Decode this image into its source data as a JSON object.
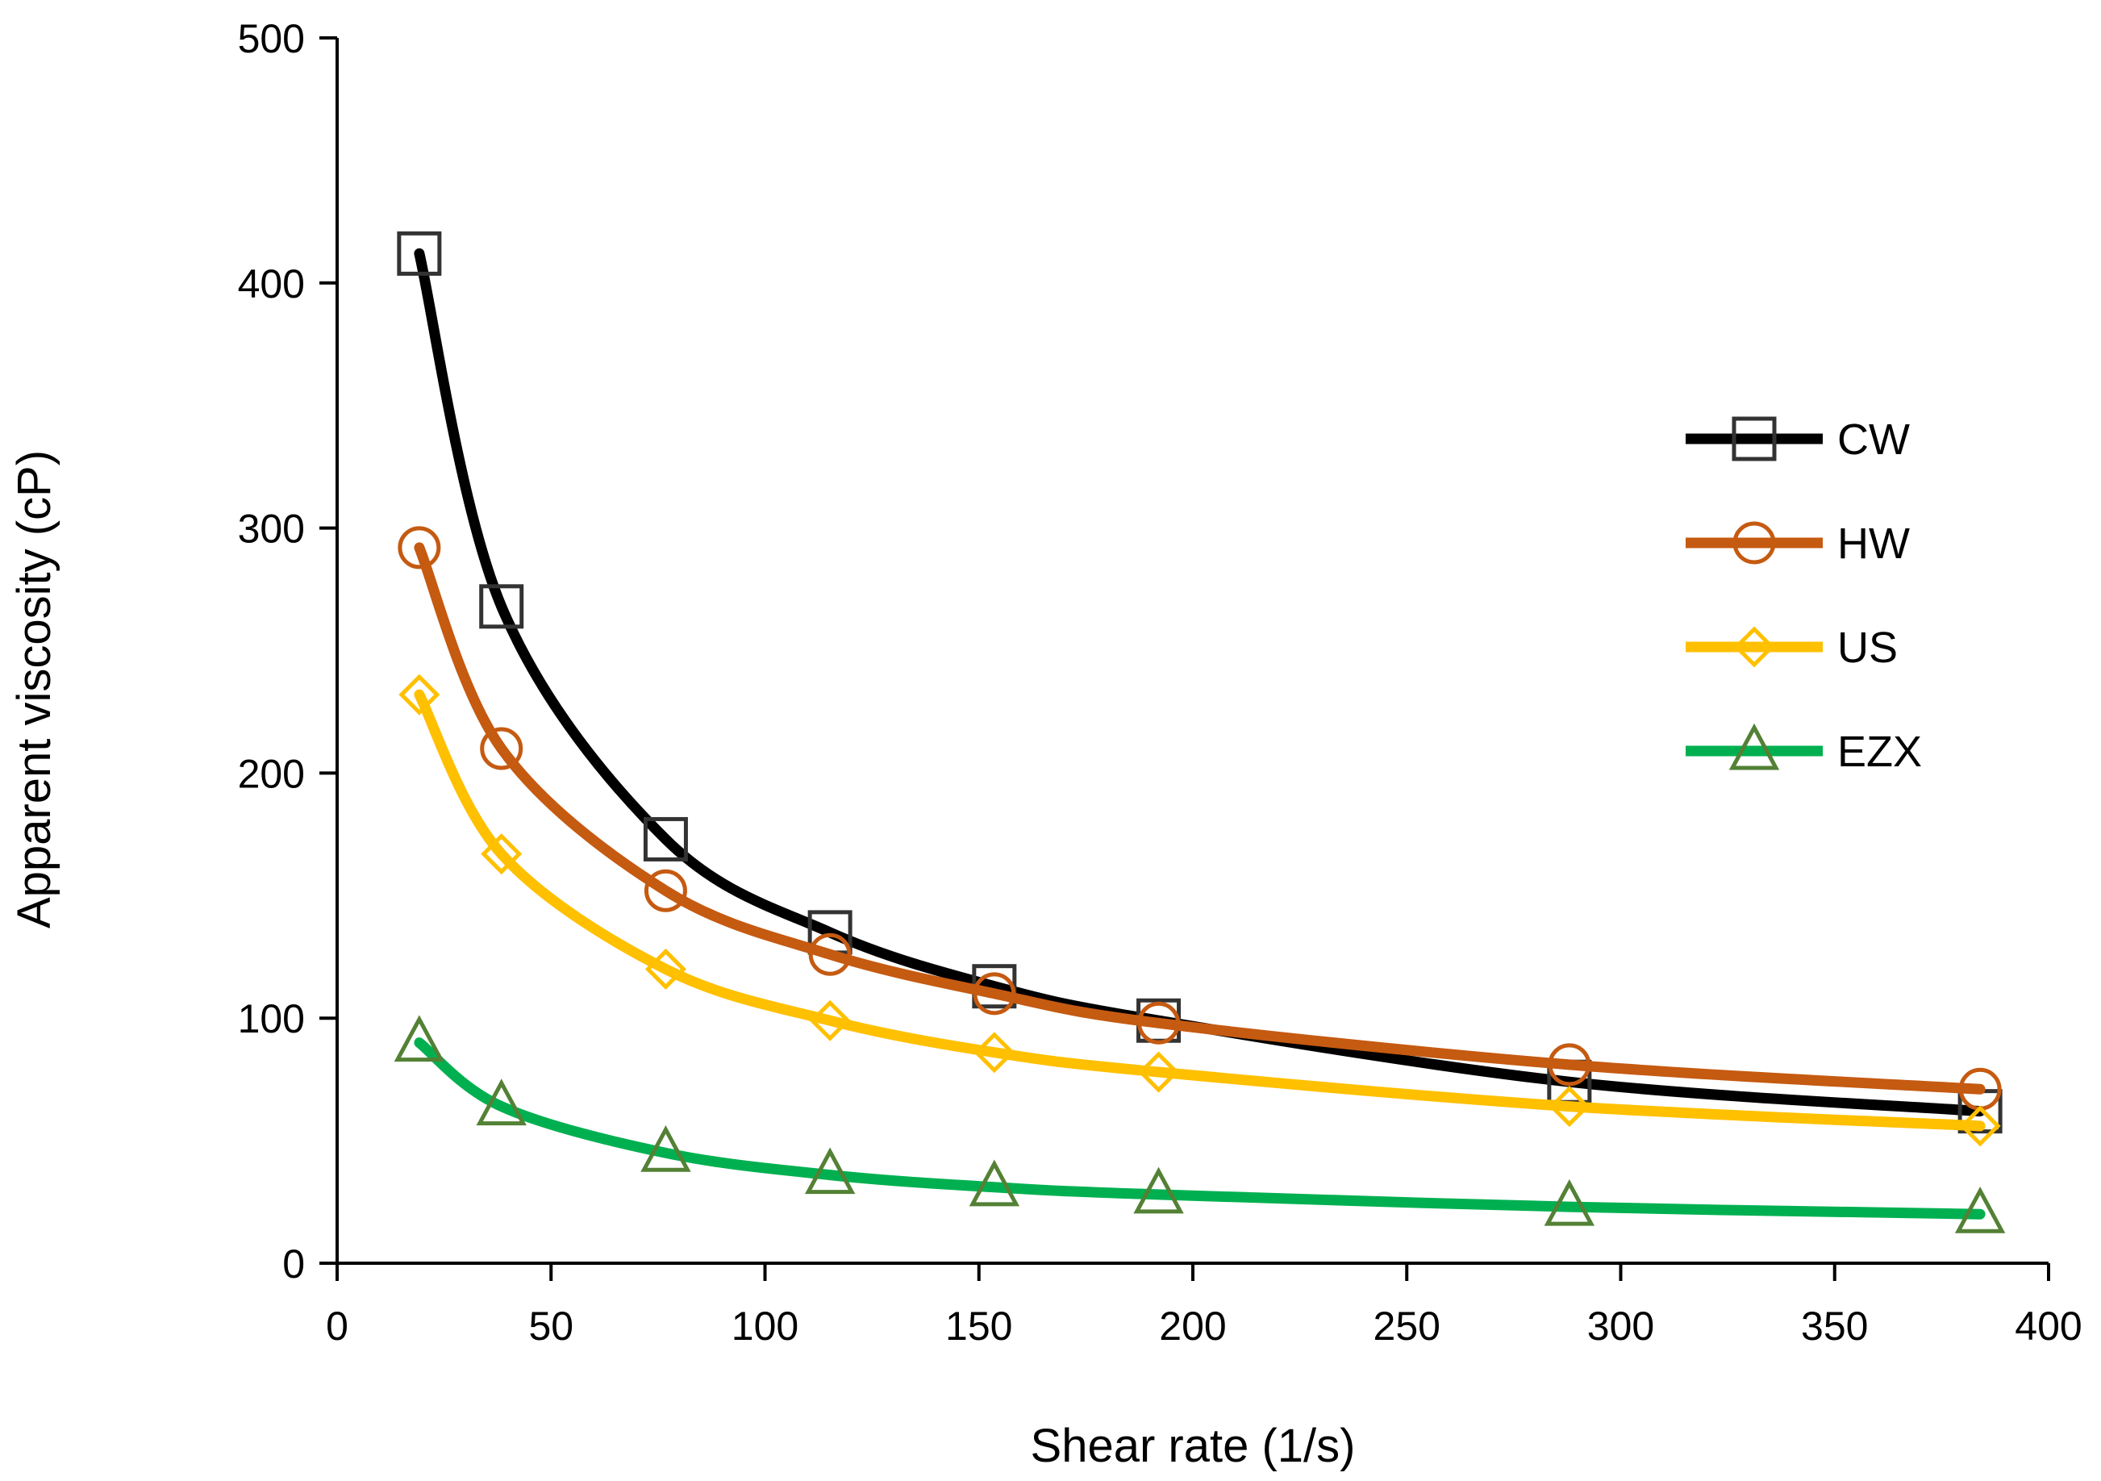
{
  "chart_data": {
    "type": "line",
    "title": "",
    "xlabel": "Shear rate (1/s)",
    "ylabel": "Apparent viscosity (cP)",
    "xlim": [
      0,
      400
    ],
    "ylim": [
      0,
      500
    ],
    "xticks": [
      0,
      50,
      100,
      150,
      200,
      250,
      300,
      350,
      400
    ],
    "yticks": [
      0,
      100,
      200,
      300,
      400,
      500
    ],
    "grid": false,
    "legend_position": "right",
    "x": [
      19.2,
      38.4,
      76.8,
      115.2,
      153.6,
      192,
      288,
      384
    ],
    "series": [
      {
        "name": "CW",
        "marker": "square",
        "color": "#000000",
        "marker_color": "#333333",
        "values": [
          412,
          268,
          173,
          135,
          113,
          99,
          74,
          62
        ]
      },
      {
        "name": "HW",
        "marker": "circle",
        "color": "#C55A11",
        "marker_color": "#C55A11",
        "values": [
          292,
          210,
          152,
          126,
          110,
          98,
          81,
          71
        ]
      },
      {
        "name": "US",
        "marker": "diamond",
        "color": "#FFC000",
        "marker_color": "#FFC000",
        "values": [
          232,
          167,
          120,
          99,
          86,
          78,
          64,
          56
        ]
      },
      {
        "name": "EZX",
        "marker": "triangle",
        "color": "#00B050",
        "marker_color": "#538135",
        "values": [
          90,
          64,
          45,
          36,
          31,
          28,
          23,
          20
        ]
      }
    ]
  }
}
